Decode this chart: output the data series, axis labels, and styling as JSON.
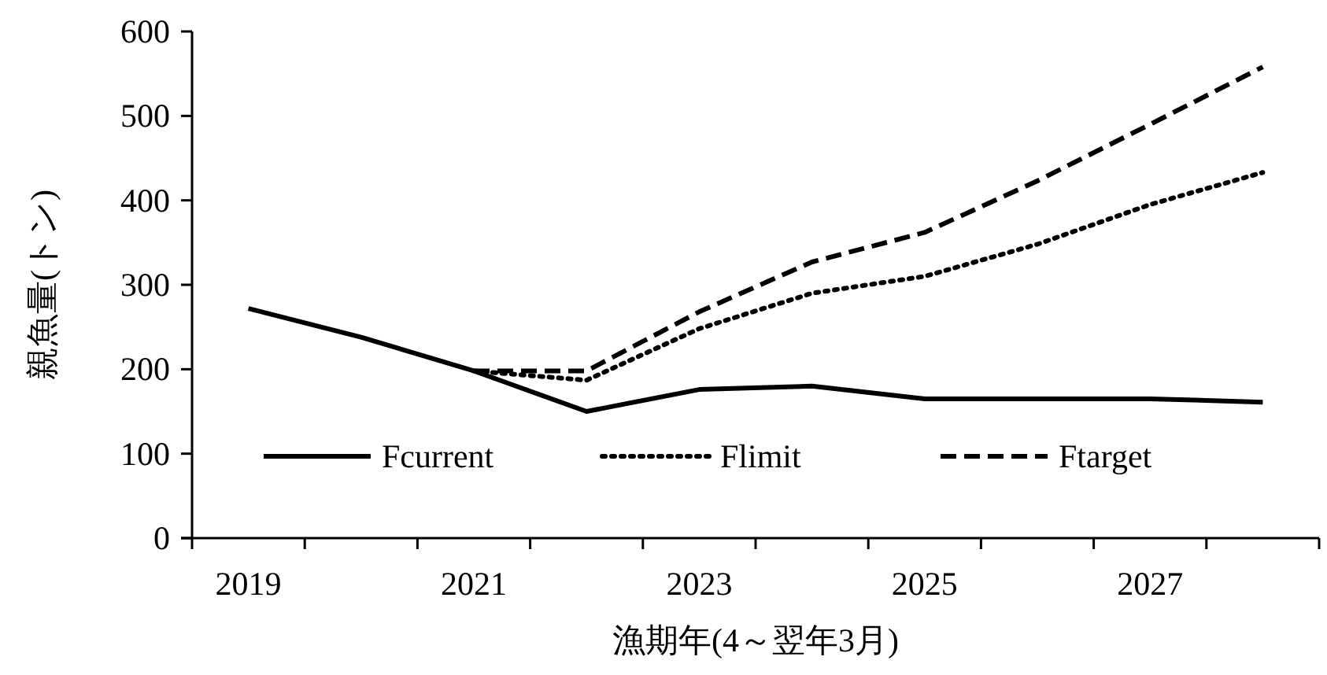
{
  "chart_data": {
    "type": "line",
    "xlabel": "漁期年(4～翌年3月)",
    "ylabel": "親魚量(トン)",
    "categories": [
      "2019",
      null,
      "2021",
      null,
      "2023",
      null,
      "2025",
      null,
      "2027",
      null
    ],
    "ylim": [
      0,
      600
    ],
    "yticks": [
      0,
      100,
      200,
      300,
      400,
      500,
      600
    ],
    "grid": false,
    "legend": "bottom",
    "marker": "none",
    "series": [
      {
        "name": "Fcurrent",
        "color": "#000000",
        "line_style": "solid",
        "values": [
          272,
          238,
          198,
          150,
          176,
          180,
          165,
          165,
          165,
          161
        ]
      },
      {
        "name": "Flimit",
        "color": "#000000",
        "line_style": "dotted",
        "values": [
          null,
          null,
          198,
          187,
          248,
          290,
          310,
          348,
          395,
          433
        ]
      },
      {
        "name": "Ftarget",
        "color": "#000000",
        "line_style": "dashed",
        "values": [
          null,
          null,
          198,
          198,
          268,
          327,
          362,
          423,
          490,
          558
        ]
      }
    ]
  }
}
